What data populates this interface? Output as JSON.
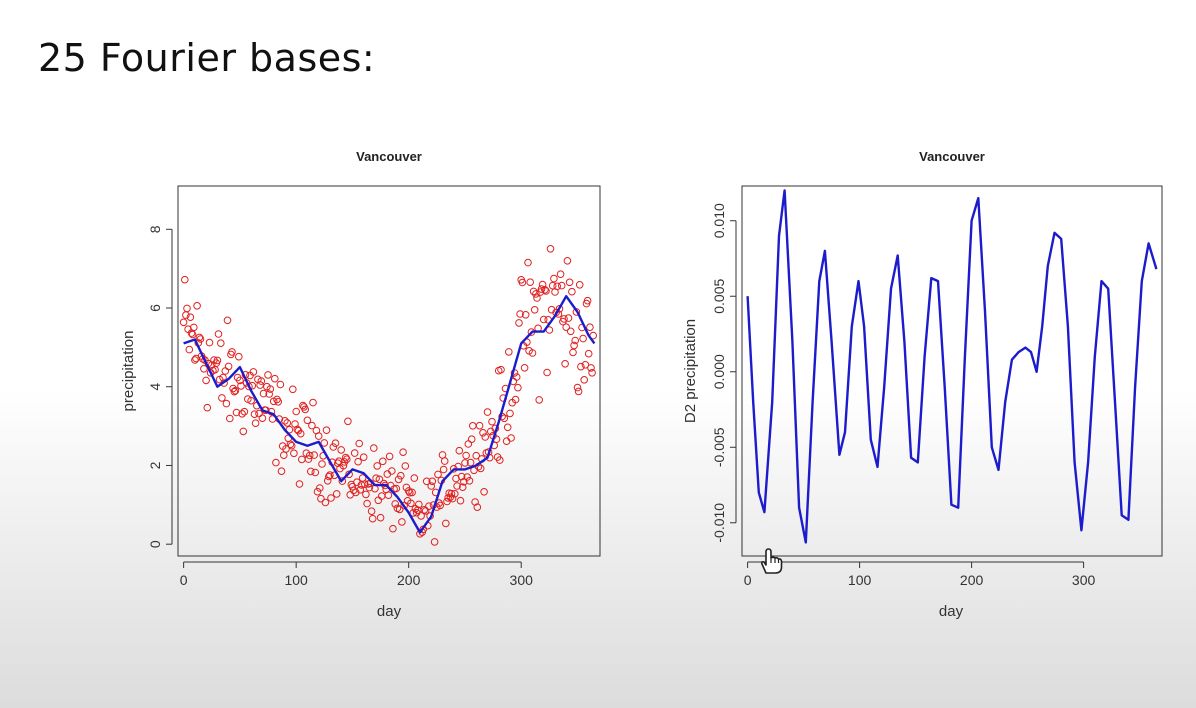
{
  "slide": {
    "title": "25 Fourier bases:"
  },
  "colors": {
    "points": "#e02020",
    "fit": "#1c1ccc",
    "axes": "#333333"
  },
  "chart_data": [
    {
      "type": "scatter",
      "title": "Vancouver",
      "xlabel": "day",
      "ylabel": "precipitation",
      "xlim": [
        -5,
        370
      ],
      "ylim": [
        -0.3,
        9.1
      ],
      "xticks": [
        0,
        100,
        200,
        300
      ],
      "yticks": [
        0,
        2,
        4,
        6,
        8
      ],
      "grid": false,
      "legend": "none",
      "scatter_anchors": {
        "x": [
          0,
          15,
          30,
          45,
          60,
          75,
          90,
          105,
          120,
          135,
          150,
          165,
          180,
          195,
          210,
          225,
          240,
          255,
          270,
          285,
          300,
          315,
          330,
          345,
          365
        ],
        "y": [
          5.5,
          5.0,
          4.3,
          4.1,
          3.9,
          3.4,
          2.9,
          2.6,
          2.4,
          2.0,
          1.8,
          1.6,
          1.4,
          1.2,
          0.6,
          1.1,
          1.7,
          2.2,
          2.6,
          3.3,
          5.2,
          5.8,
          6.2,
          5.7,
          4.6
        ],
        "spread": [
          1.1,
          1.0,
          1.0,
          1.0,
          0.9,
          0.9,
          0.8,
          0.8,
          0.8,
          0.7,
          0.7,
          0.7,
          0.7,
          0.7,
          0.6,
          0.6,
          0.7,
          0.7,
          0.8,
          0.9,
          1.1,
          1.4,
          1.4,
          1.2,
          1.2
        ],
        "count": 365
      },
      "series": [
        {
          "type": "line",
          "x": [
            0,
            10,
            20,
            30,
            40,
            50,
            60,
            70,
            80,
            90,
            100,
            110,
            120,
            130,
            140,
            150,
            160,
            170,
            180,
            190,
            200,
            210,
            220,
            230,
            240,
            250,
            260,
            270,
            280,
            290,
            300,
            310,
            320,
            330,
            340,
            350,
            360,
            365
          ],
          "y": [
            5.1,
            5.2,
            4.6,
            4.0,
            4.2,
            4.5,
            3.9,
            3.4,
            3.3,
            2.9,
            2.6,
            2.5,
            2.6,
            2.1,
            1.6,
            1.9,
            1.8,
            1.5,
            1.5,
            1.2,
            0.8,
            0.3,
            0.7,
            1.6,
            1.9,
            1.9,
            2.0,
            2.2,
            3.1,
            4.1,
            5.1,
            5.4,
            5.4,
            5.8,
            6.3,
            5.9,
            5.3,
            5.1
          ]
        }
      ]
    },
    {
      "type": "line",
      "title": "Vancouver",
      "xlabel": "day",
      "ylabel": "D2 precipitation",
      "xlim": [
        -5,
        370
      ],
      "ylim": [
        -0.0122,
        0.0123
      ],
      "xticks": [
        0,
        100,
        200,
        300
      ],
      "yticks": [
        -0.01,
        -0.005,
        0.0,
        0.005,
        0.01
      ],
      "ytick_labels": [
        "-0.010",
        "-0.005",
        "0.000",
        "0.005",
        "0.010"
      ],
      "grid": false,
      "legend": "none",
      "series": [
        {
          "x": [
            0,
            5,
            10,
            15,
            22,
            28,
            33,
            40,
            46,
            52,
            58,
            64,
            69,
            75,
            82,
            87,
            93,
            99,
            104,
            110,
            116,
            122,
            128,
            134,
            140,
            146,
            152,
            158,
            164,
            170,
            176,
            182,
            188,
            194,
            200,
            206,
            212,
            218,
            224,
            230,
            236,
            242,
            248,
            253,
            258,
            263,
            268,
            274,
            280,
            286,
            292,
            298,
            304,
            310,
            316,
            322,
            328,
            334,
            340,
            346,
            352,
            358,
            365
          ],
          "y": [
            0.005,
            -0.002,
            -0.008,
            -0.0093,
            -0.002,
            0.009,
            0.012,
            0.002,
            -0.009,
            -0.0113,
            -0.002,
            0.006,
            0.008,
            0.002,
            -0.0055,
            -0.004,
            0.003,
            0.006,
            0.003,
            -0.0045,
            -0.0063,
            -0.001,
            0.0055,
            0.0077,
            0.002,
            -0.0057,
            -0.006,
            0.001,
            0.0062,
            0.006,
            -0.001,
            -0.0088,
            -0.009,
            0.001,
            0.01,
            0.0115,
            0.004,
            -0.005,
            -0.0065,
            -0.002,
            0.0008,
            0.0013,
            0.0016,
            0.0013,
            0.0,
            0.003,
            0.007,
            0.0092,
            0.0088,
            0.003,
            -0.006,
            -0.0105,
            -0.006,
            0.001,
            0.006,
            0.0055,
            -0.002,
            -0.0095,
            -0.0098,
            -0.001,
            0.006,
            0.0085,
            0.0068
          ]
        }
      ]
    }
  ]
}
